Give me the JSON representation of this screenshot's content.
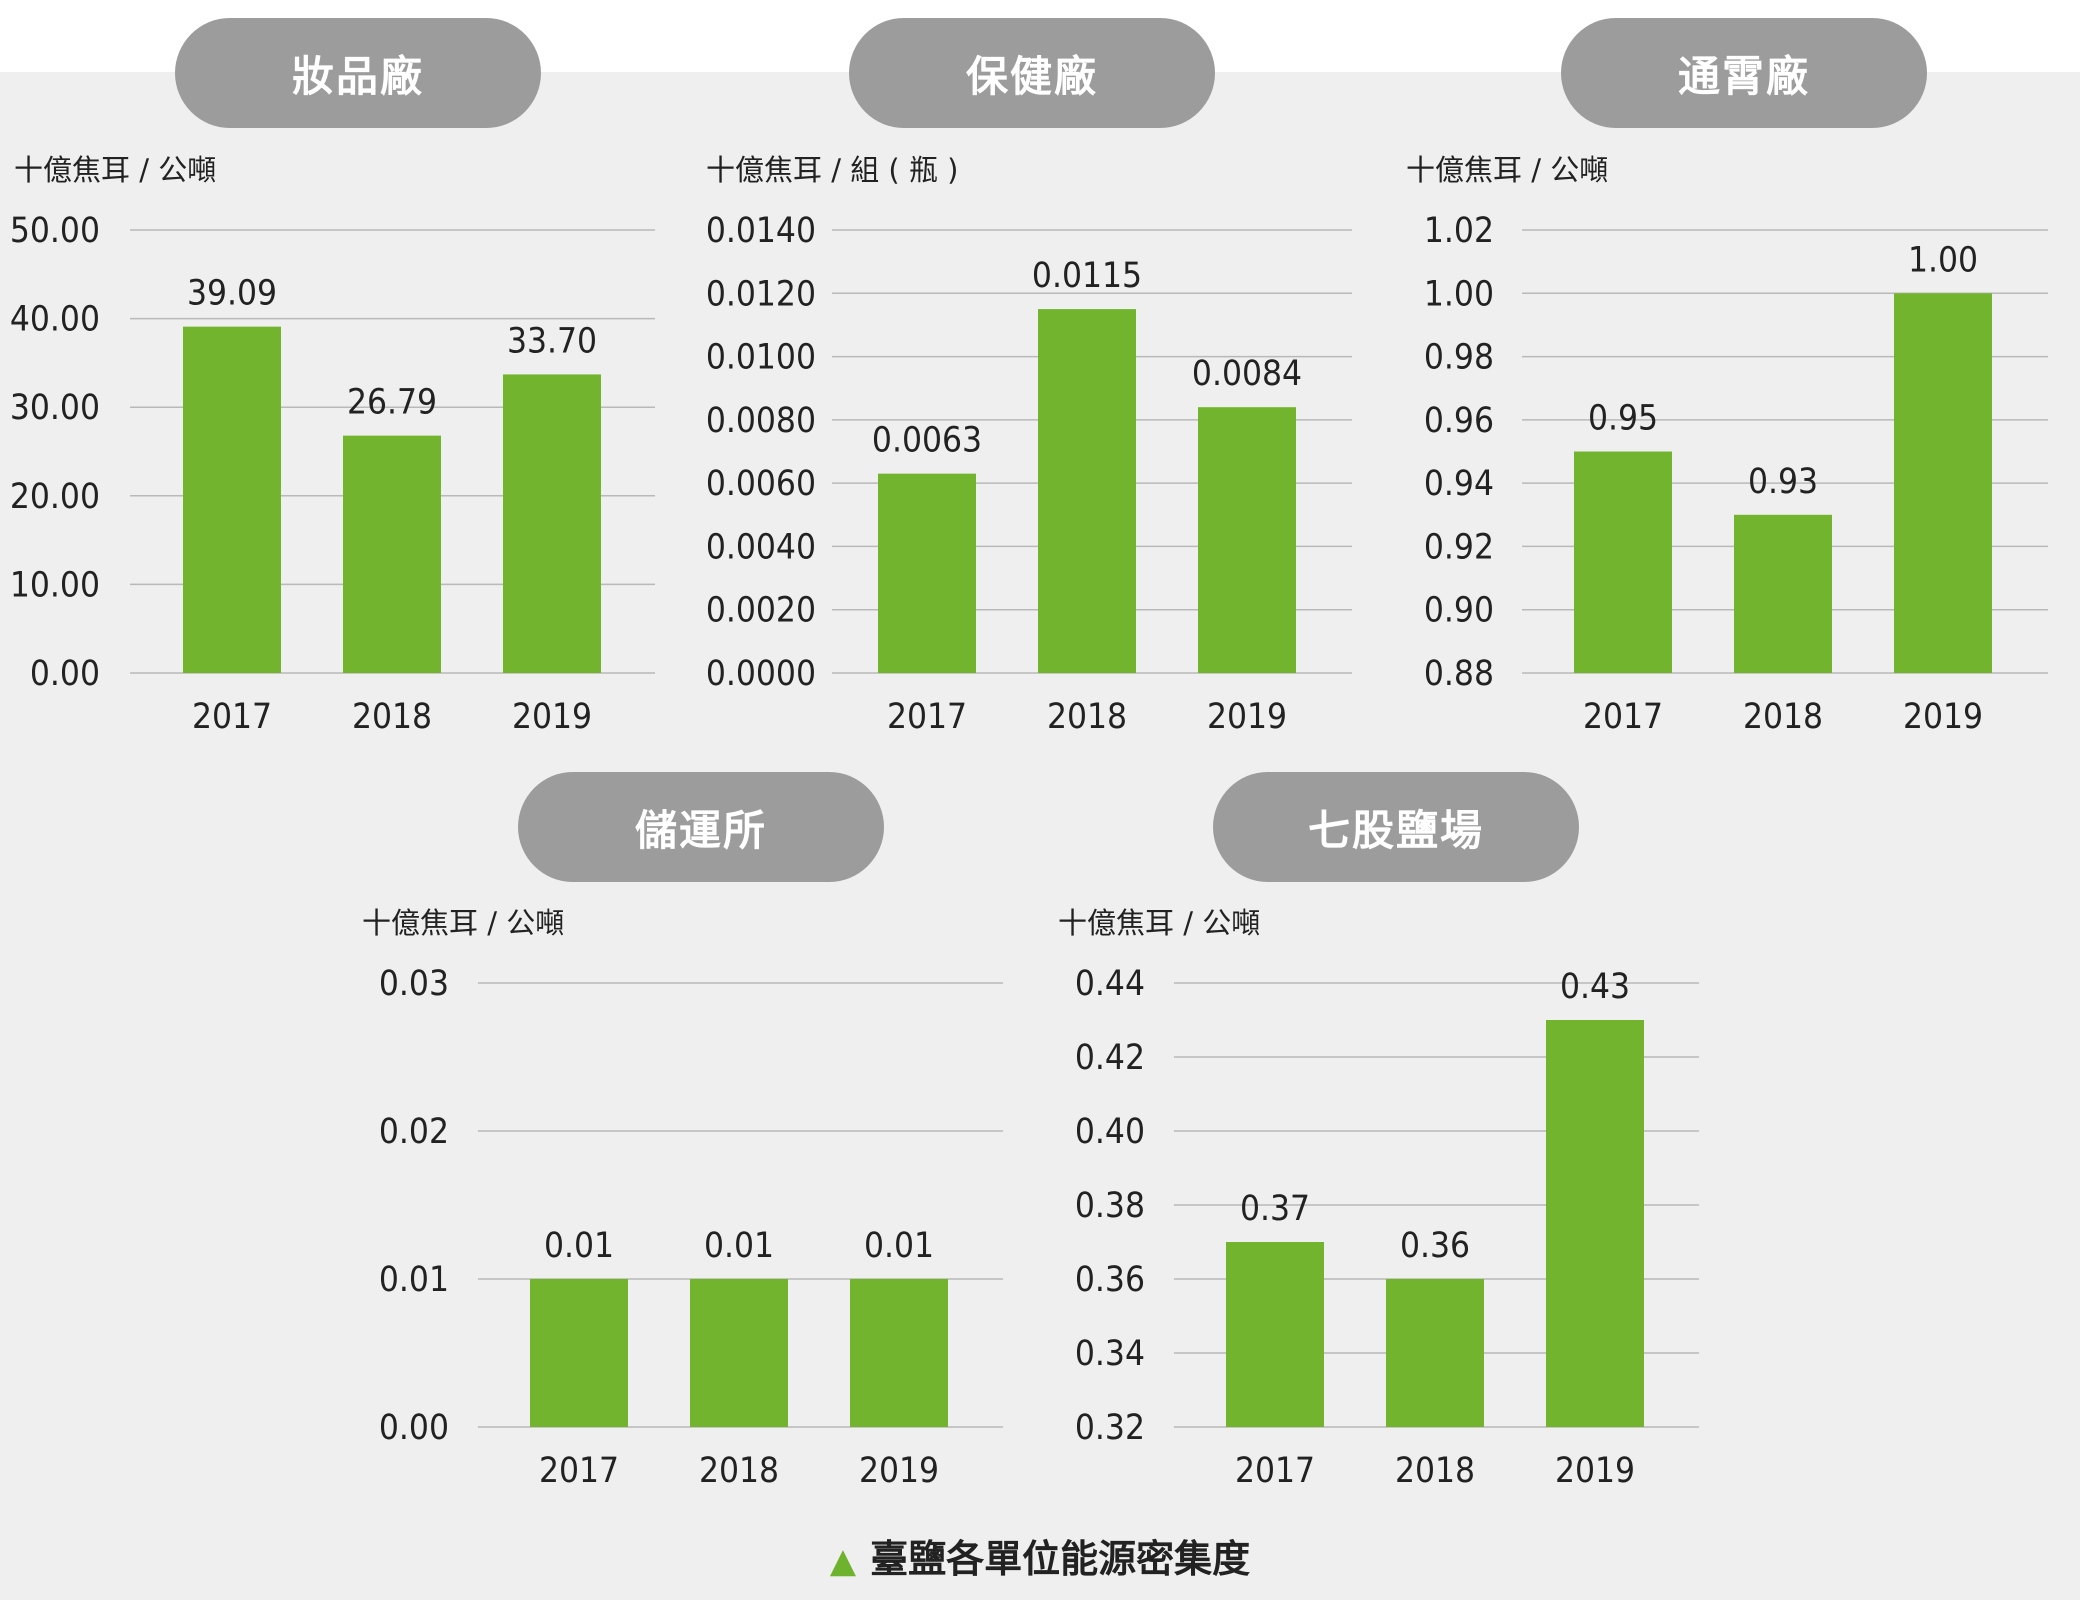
{
  "caption": "臺鹽各單位能源密集度",
  "accent_color": "#72b42d",
  "chart_data": [
    {
      "type": "bar",
      "title": "妝品廠",
      "ylabel": "十億焦耳 / 公噸",
      "categories": [
        "2017",
        "2018",
        "2019"
      ],
      "values": [
        39.09,
        26.79,
        33.7
      ],
      "value_labels": [
        "39.09",
        "26.79",
        "33.70"
      ],
      "ylim": [
        0,
        50
      ],
      "yticks": [
        "0.00",
        "10.00",
        "20.00",
        "30.00",
        "40.00",
        "50.00"
      ],
      "grid": true
    },
    {
      "type": "bar",
      "title": "保健廠",
      "ylabel": "十億焦耳 / 組 ( 瓶 )",
      "categories": [
        "2017",
        "2018",
        "2019"
      ],
      "values": [
        0.0063,
        0.0115,
        0.0084
      ],
      "value_labels": [
        "0.0063",
        "0.0115",
        "0.0084"
      ],
      "ylim": [
        0,
        0.014
      ],
      "yticks": [
        "0.0000",
        "0.0020",
        "0.0040",
        "0.0060",
        "0.0080",
        "0.0100",
        "0.0120",
        "0.0140"
      ],
      "grid": true
    },
    {
      "type": "bar",
      "title": "通霄廠",
      "ylabel": "十億焦耳 / 公噸",
      "categories": [
        "2017",
        "2018",
        "2019"
      ],
      "values": [
        0.95,
        0.93,
        1.0
      ],
      "value_labels": [
        "0.95",
        "0.93",
        "1.00"
      ],
      "ylim": [
        0.88,
        1.02
      ],
      "yticks": [
        "0.88",
        "0.90",
        "0.92",
        "0.94",
        "0.96",
        "0.98",
        "1.00",
        "1.02"
      ],
      "grid": true
    },
    {
      "type": "bar",
      "title": "儲運所",
      "ylabel": "十億焦耳 / 公噸",
      "categories": [
        "2017",
        "2018",
        "2019"
      ],
      "values": [
        0.01,
        0.01,
        0.01
      ],
      "value_labels": [
        "0.01",
        "0.01",
        "0.01"
      ],
      "ylim": [
        0,
        0.03
      ],
      "yticks": [
        "0.00",
        "0.01",
        "0.02",
        "0.03"
      ],
      "grid": true
    },
    {
      "type": "bar",
      "title": "七股鹽場",
      "ylabel": "十億焦耳 / 公噸",
      "categories": [
        "2017",
        "2018",
        "2019"
      ],
      "values": [
        0.37,
        0.36,
        0.43
      ],
      "value_labels": [
        "0.37",
        "0.36",
        "0.43"
      ],
      "ylim": [
        0.32,
        0.44
      ],
      "yticks": [
        "0.32",
        "0.34",
        "0.36",
        "0.38",
        "0.40",
        "0.42",
        "0.44"
      ],
      "grid": true
    }
  ]
}
